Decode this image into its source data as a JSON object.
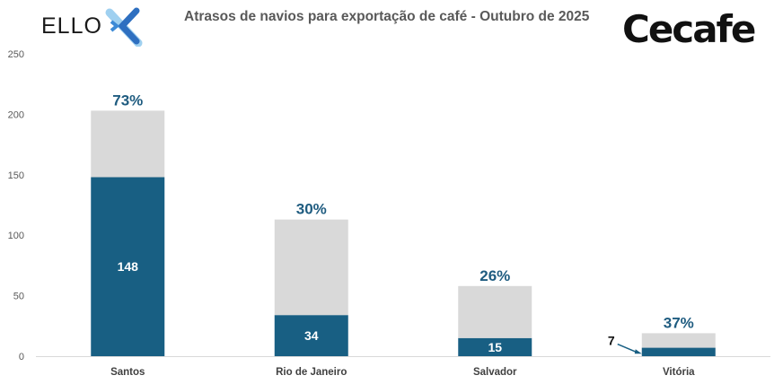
{
  "logos": {
    "left": "ELLO",
    "right": "Cecafe"
  },
  "chart_data": {
    "type": "bar",
    "stacked": true,
    "title": "Atrasos de navios para exportação de café - Outubro de 2025",
    "xlabel": "",
    "ylabel": "",
    "ylim": [
      0,
      250
    ],
    "yticks": [
      0,
      50,
      100,
      150,
      200,
      250
    ],
    "grid": false,
    "categories": [
      "Santos",
      "Rio de Janeiro",
      "Salvador",
      "Vitória"
    ],
    "series": [
      {
        "values": [
          148,
          34,
          15,
          7
        ],
        "color": "#185f83",
        "labels": [
          "148",
          "34",
          "15",
          "7"
        ]
      },
      {
        "values": [
          55,
          79,
          43,
          12
        ],
        "color": "#d9d9d9"
      }
    ],
    "totals": [
      203,
      113,
      58,
      19
    ],
    "percent_labels": [
      "73%",
      "30%",
      "26%",
      "37%"
    ],
    "percent_color": "#1f5c80"
  }
}
